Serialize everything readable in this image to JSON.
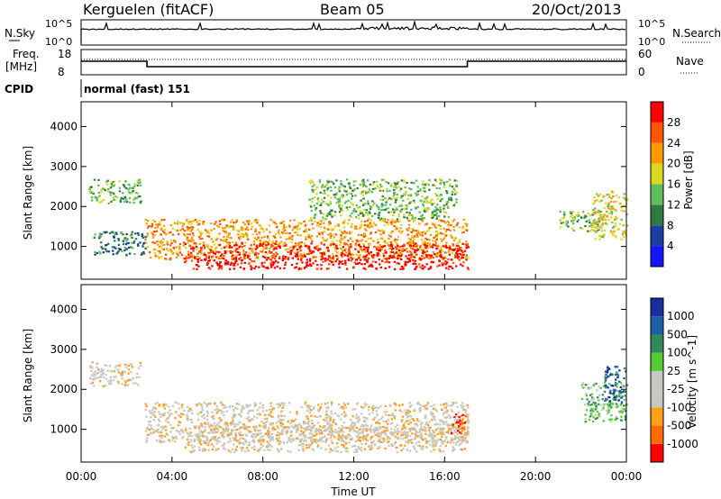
{
  "header": {
    "station": "Kerguelen (fitACF)",
    "beam": "Beam 05",
    "date": "20/Oct/2013"
  },
  "status_panels": {
    "nsky_label": "N.Sky",
    "nsearch_label": "N.Search",
    "nsky_ticks": [
      "10^5",
      "10^0"
    ],
    "nsearch_ticks": [
      "10^5",
      "10^0"
    ],
    "freq_label_1": "Freq.",
    "freq_label_2": "[MHz]",
    "freq_ticks": [
      "18",
      "8"
    ],
    "nave_label": "Nave",
    "nave_ticks": [
      "60",
      "0"
    ],
    "cpid_label": "CPID",
    "cpid_value": "normal (fast) 151"
  },
  "colors": {
    "power": [
      "#1414ff",
      "#1a3fa0",
      "#2f7a3f",
      "#5fbf5f",
      "#d8d820",
      "#ff9900",
      "#ff5500",
      "#ff0000"
    ],
    "velocity": [
      "#ff0000",
      "#ff6a00",
      "#ff9f1a",
      "#c8c8c0",
      "#c8c8c0",
      "#55cc33",
      "#2e8b57",
      "#1f5fa8",
      "#1a2f9f"
    ]
  },
  "chart_data": [
    {
      "type": "heatmap",
      "name": "power",
      "ylabel": "Slant Range [km]",
      "xlabel": "Time UT",
      "x_ticks": [
        "00:00",
        "04:00",
        "08:00",
        "12:00",
        "16:00",
        "20:00",
        "00:00"
      ],
      "xlim_hours": [
        0,
        24
      ],
      "ylim_km": [
        180,
        4620
      ],
      "y_ticks": [
        1000,
        2000,
        3000,
        4000
      ],
      "colorbar_label": "Power [dB]",
      "colorbar_ticks": [
        "28",
        "24",
        "20",
        "16",
        "12",
        "8",
        "4"
      ],
      "regions": [
        {
          "t0": 0.3,
          "t1": 2.6,
          "r0": 2100,
          "r1": 2700,
          "level": 3
        },
        {
          "t0": 0.5,
          "t1": 2.8,
          "r0": 800,
          "r1": 1400,
          "level": 2
        },
        {
          "t0": 2.8,
          "t1": 17.0,
          "r0": 700,
          "r1": 1700,
          "level": 5
        },
        {
          "t0": 4.5,
          "t1": 17.0,
          "r0": 450,
          "r1": 1100,
          "level": 7
        },
        {
          "t0": 10.0,
          "t1": 16.5,
          "r0": 1700,
          "r1": 2700,
          "level": 3
        },
        {
          "t0": 21.0,
          "t1": 23.0,
          "r0": 1400,
          "r1": 1900,
          "level": 3
        },
        {
          "t0": 22.5,
          "t1": 24.0,
          "r0": 1200,
          "r1": 2400,
          "level": 4
        }
      ]
    },
    {
      "type": "heatmap",
      "name": "velocity",
      "ylabel": "Slant Range [km]",
      "xlabel": "Time UT",
      "x_ticks": [
        "00:00",
        "04:00",
        "08:00",
        "12:00",
        "16:00",
        "20:00",
        "00:00"
      ],
      "xlim_hours": [
        0,
        24
      ],
      "ylim_km": [
        180,
        4620
      ],
      "y_ticks": [
        1000,
        2000,
        3000,
        4000
      ],
      "colorbar_label": "Velocity [m s^-1]",
      "colorbar_ticks": [
        "1000",
        "500",
        "100",
        "25",
        "-25",
        "-100",
        "-500",
        "-1000"
      ],
      "regions": [
        {
          "t0": 0.3,
          "t1": 2.6,
          "r0": 2100,
          "r1": 2700,
          "level": 3
        },
        {
          "t0": 2.8,
          "t1": 17.0,
          "r0": 700,
          "r1": 1700,
          "level": 3
        },
        {
          "t0": 4.5,
          "t1": 17.0,
          "r0": 450,
          "r1": 1100,
          "level": 3
        },
        {
          "t0": 16.2,
          "t1": 17.0,
          "r0": 900,
          "r1": 1400,
          "level": 1
        },
        {
          "t0": 22.0,
          "t1": 24.0,
          "r0": 1200,
          "r1": 2200,
          "level": 5
        },
        {
          "t0": 23.0,
          "t1": 24.0,
          "r0": 1700,
          "r1": 2600,
          "level": 7
        }
      ]
    }
  ]
}
